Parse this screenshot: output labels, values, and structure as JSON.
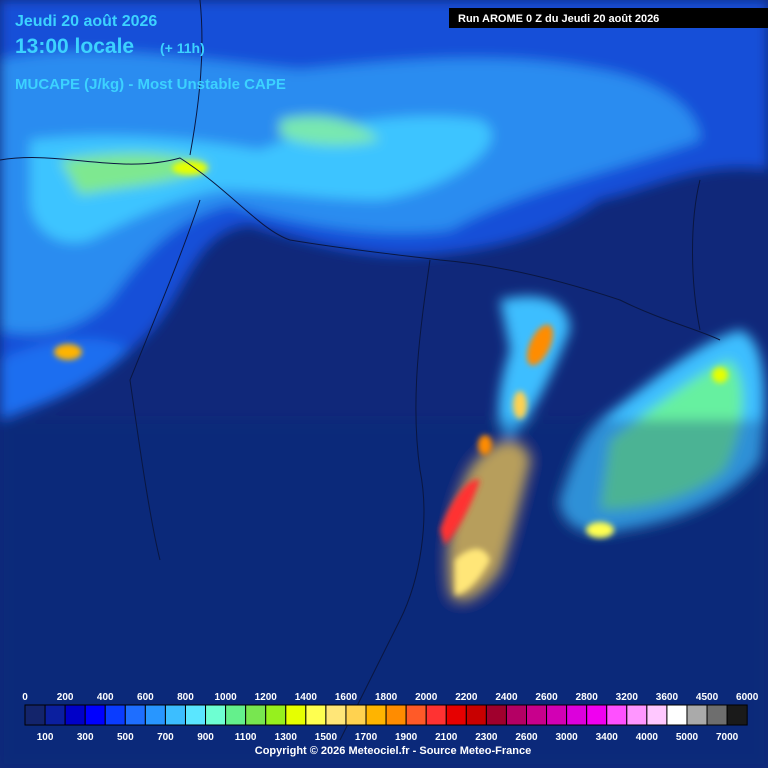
{
  "header": {
    "date": "Jeudi 20 août 2026",
    "time": "13:00 locale",
    "lead": "(+ 11h)",
    "parameter": "MUCAPE (J/kg) - Most Unstable CAPE",
    "run": "Run AROME 0 Z du Jeudi 20 août 2026"
  },
  "legend": {
    "top_labels": [
      "0",
      "200",
      "400",
      "600",
      "800",
      "1000",
      "1200",
      "1400",
      "1600",
      "1800",
      "2000",
      "2200",
      "2400",
      "2600",
      "2800",
      "3200",
      "3600",
      "4500",
      "6000"
    ],
    "bottom_labels": [
      "100",
      "300",
      "500",
      "700",
      "900",
      "1100",
      "1300",
      "1500",
      "1700",
      "1900",
      "2100",
      "2300",
      "2600",
      "3000",
      "3400",
      "4000",
      "5000",
      "7000"
    ]
  },
  "footer": "Copyright © 2026 Meteociel.fr - Source Meteo-France"
}
